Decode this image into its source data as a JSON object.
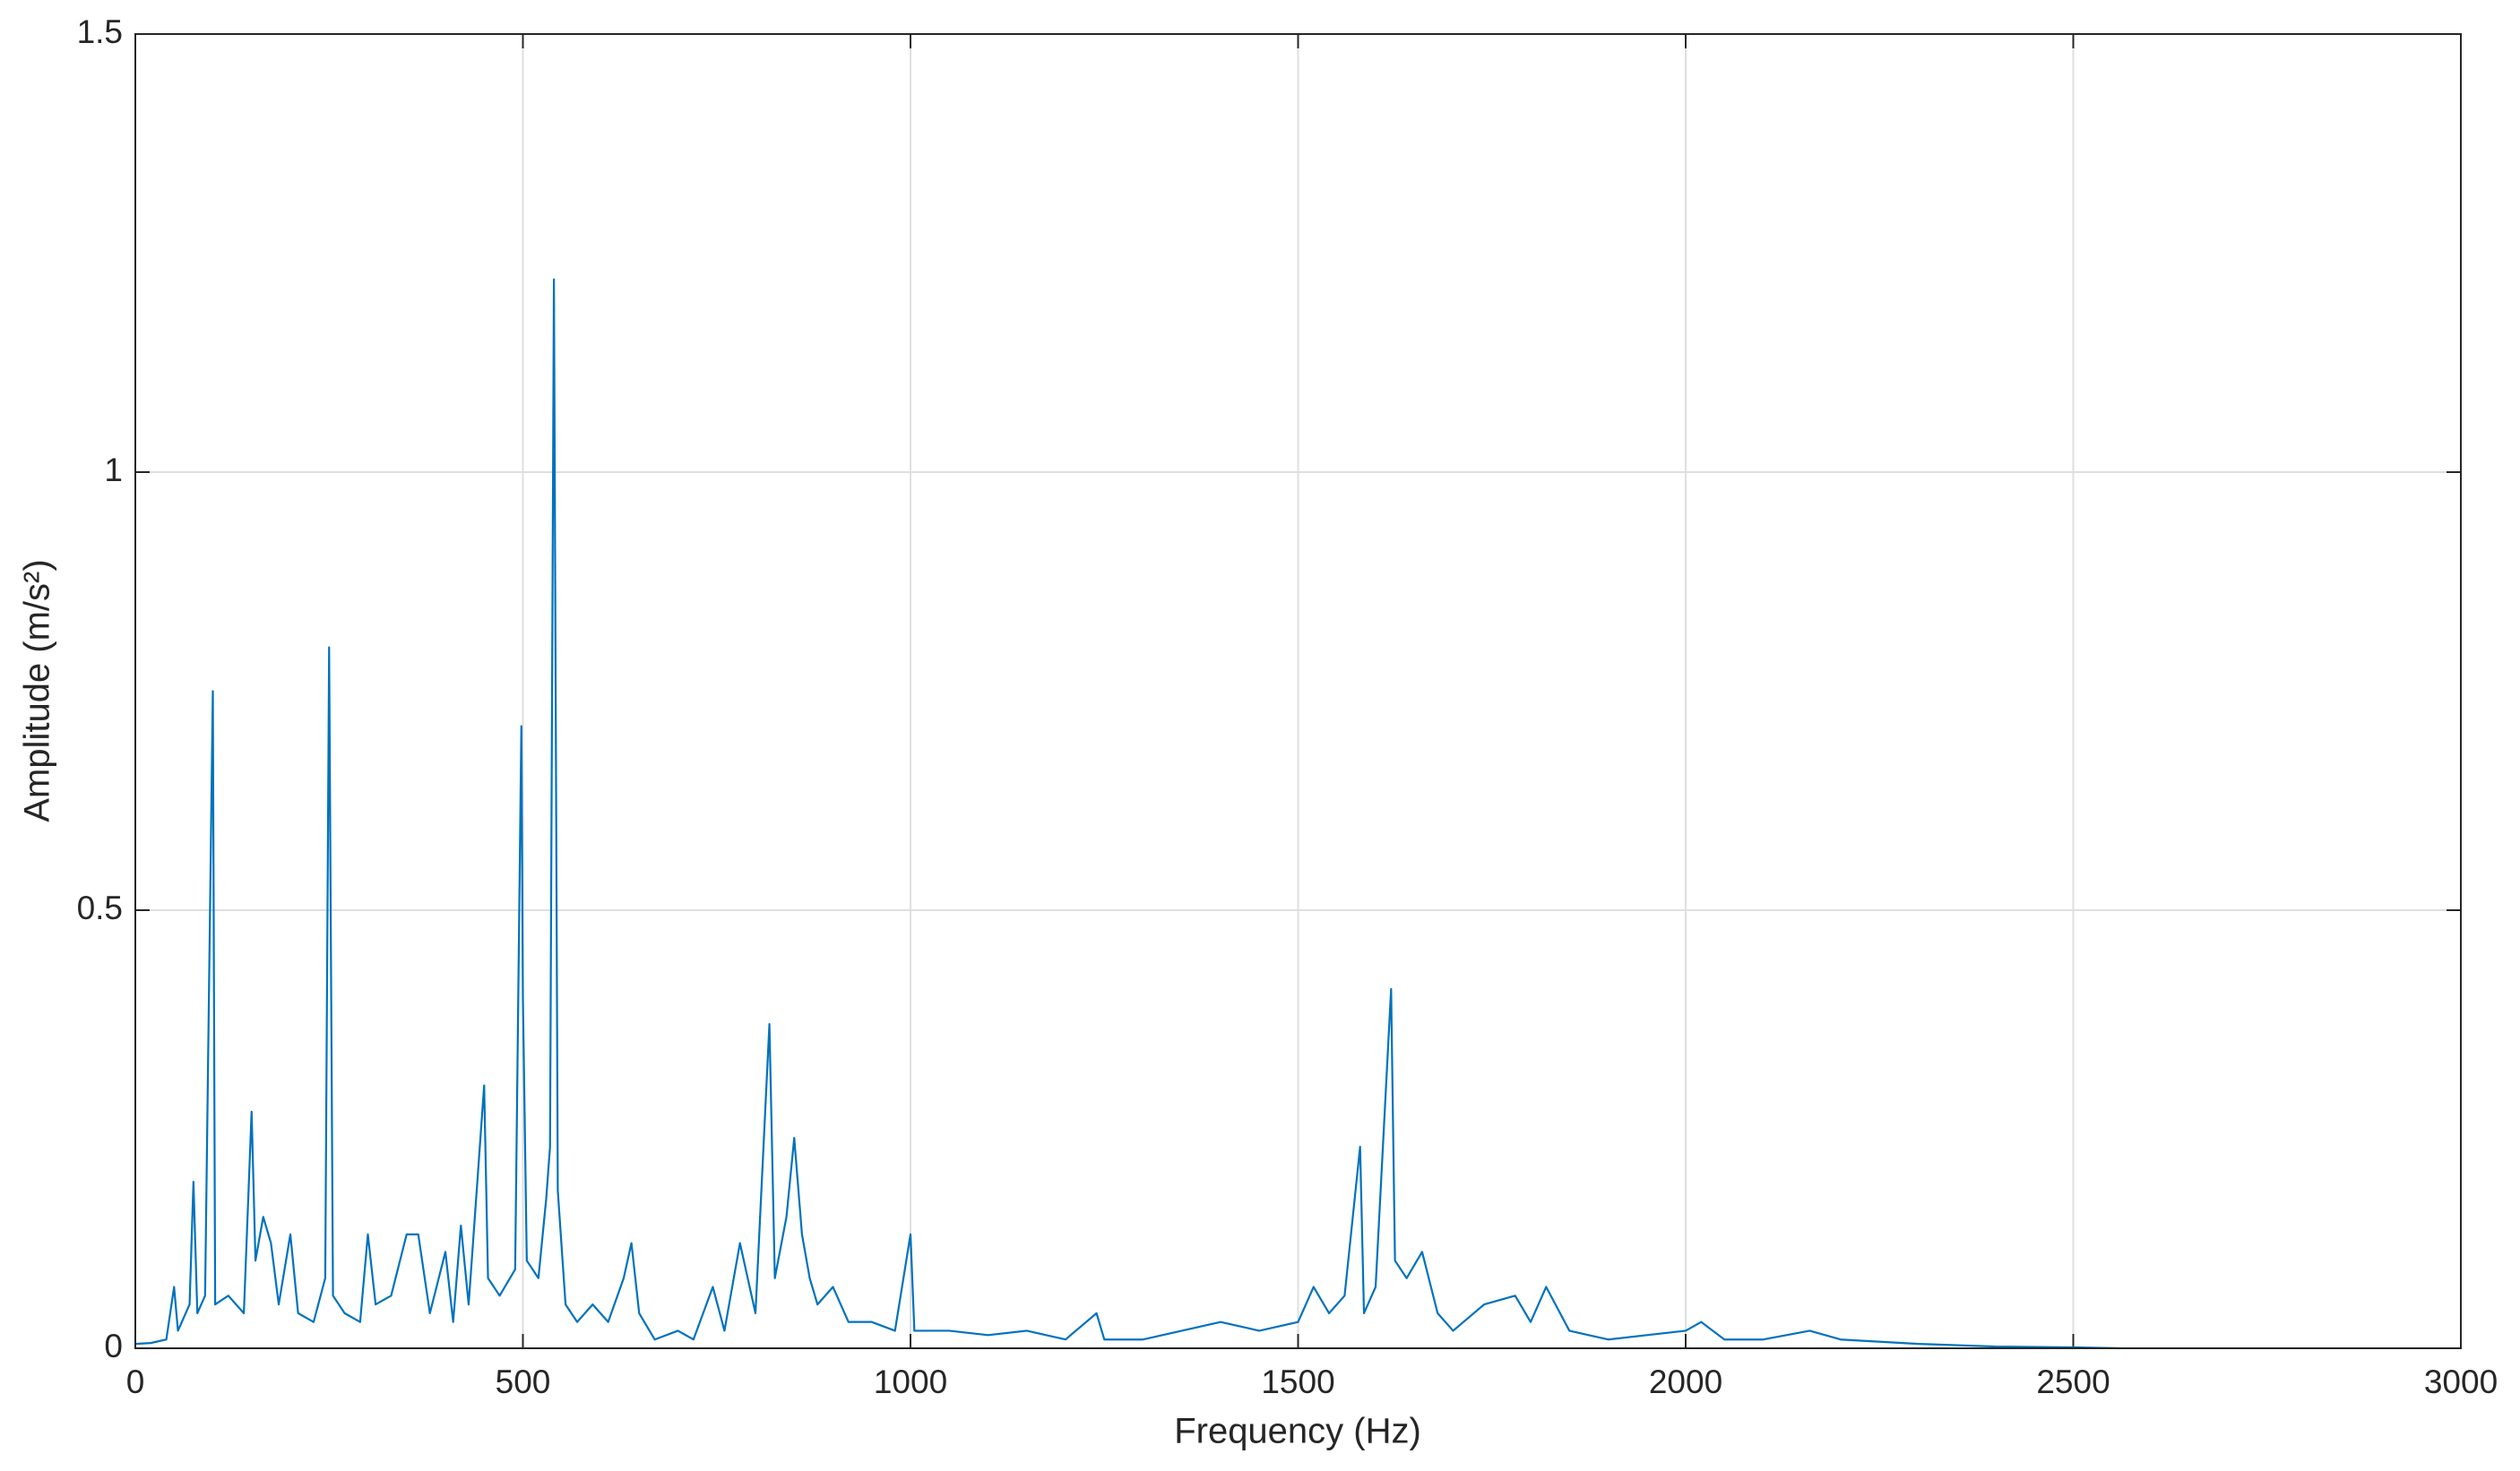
{
  "chart_data": {
    "type": "line",
    "xlabel": "Frequency (Hz)",
    "ylabel": "Amplitude (m/s²)",
    "xlim": [
      0,
      3000
    ],
    "xticks": [
      0,
      500,
      1000,
      1500,
      2000,
      2500,
      3000
    ],
    "ylim": [
      0,
      1.5
    ],
    "yticks": [
      0,
      0.5,
      1,
      1.5
    ],
    "grid": true,
    "series": [
      {
        "color": "#0072bd",
        "x": [
          0,
          20,
          40,
          50,
          55,
          70,
          75,
          80,
          90,
          100,
          103,
          120,
          140,
          150,
          155,
          165,
          175,
          185,
          200,
          210,
          230,
          245,
          250,
          255,
          270,
          290,
          300,
          310,
          330,
          350,
          365,
          380,
          400,
          410,
          420,
          430,
          450,
          455,
          470,
          490,
          498,
          500,
          505,
          520,
          530,
          535,
          540,
          545,
          555,
          570,
          590,
          610,
          630,
          640,
          650,
          670,
          700,
          720,
          745,
          760,
          780,
          800,
          818,
          825,
          840,
          850,
          860,
          870,
          880,
          900,
          920,
          950,
          980,
          1000,
          1005,
          1050,
          1100,
          1150,
          1200,
          1240,
          1250,
          1300,
          1350,
          1400,
          1450,
          1500,
          1520,
          1540,
          1560,
          1580,
          1585,
          1600,
          1620,
          1625,
          1640,
          1660,
          1680,
          1700,
          1740,
          1780,
          1800,
          1820,
          1850,
          1900,
          1950,
          2000,
          2020,
          2050,
          2100,
          2160,
          2200,
          2300,
          2400,
          2500,
          2560
        ],
        "values": [
          0.005,
          0.006,
          0.01,
          0.07,
          0.02,
          0.05,
          0.19,
          0.04,
          0.06,
          0.75,
          0.05,
          0.06,
          0.04,
          0.27,
          0.1,
          0.15,
          0.12,
          0.05,
          0.13,
          0.04,
          0.03,
          0.08,
          0.8,
          0.06,
          0.04,
          0.03,
          0.13,
          0.05,
          0.06,
          0.13,
          0.13,
          0.04,
          0.11,
          0.03,
          0.14,
          0.05,
          0.3,
          0.08,
          0.06,
          0.09,
          0.71,
          0.4,
          0.1,
          0.08,
          0.17,
          0.23,
          1.22,
          0.18,
          0.05,
          0.03,
          0.05,
          0.03,
          0.08,
          0.12,
          0.04,
          0.01,
          0.02,
          0.01,
          0.07,
          0.02,
          0.12,
          0.04,
          0.37,
          0.08,
          0.15,
          0.24,
          0.13,
          0.08,
          0.05,
          0.07,
          0.03,
          0.03,
          0.02,
          0.13,
          0.02,
          0.02,
          0.015,
          0.02,
          0.01,
          0.04,
          0.01,
          0.01,
          0.02,
          0.03,
          0.02,
          0.03,
          0.07,
          0.04,
          0.06,
          0.23,
          0.04,
          0.07,
          0.41,
          0.1,
          0.08,
          0.11,
          0.04,
          0.02,
          0.05,
          0.06,
          0.03,
          0.07,
          0.02,
          0.01,
          0.015,
          0.02,
          0.03,
          0.01,
          0.01,
          0.02,
          0.01,
          0.005,
          0.002,
          0.001,
          0
        ]
      }
    ]
  }
}
